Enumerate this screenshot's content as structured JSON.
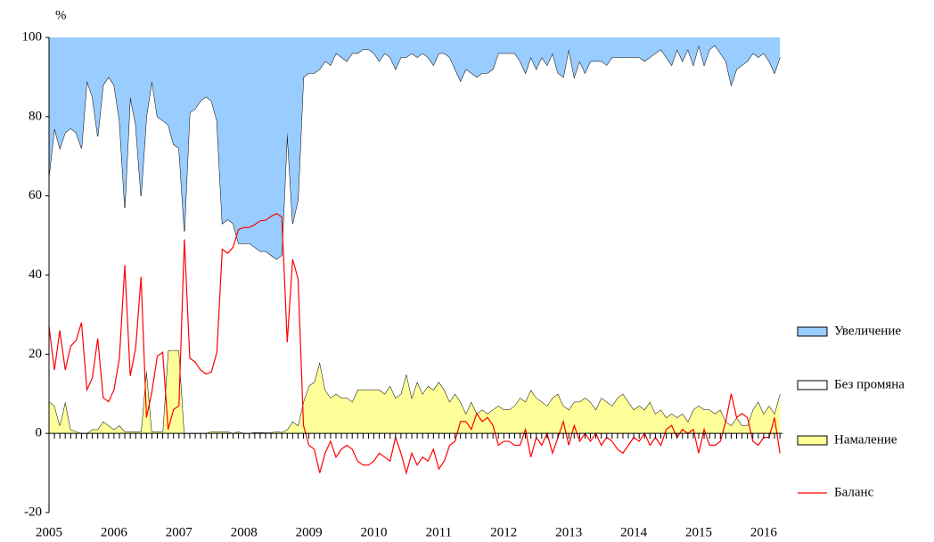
{
  "chart_data": {
    "type": "area",
    "y_label": "%",
    "categories": [
      "2005",
      null,
      null,
      null,
      null,
      null,
      null,
      null,
      null,
      null,
      null,
      null,
      "2006",
      null,
      null,
      null,
      null,
      null,
      null,
      null,
      null,
      null,
      null,
      null,
      "2007",
      null,
      null,
      null,
      null,
      null,
      null,
      null,
      null,
      null,
      null,
      null,
      "2008",
      null,
      null,
      null,
      null,
      null,
      null,
      null,
      null,
      null,
      null,
      null,
      "2009",
      null,
      null,
      null,
      null,
      null,
      null,
      null,
      null,
      null,
      null,
      null,
      "2010",
      null,
      null,
      null,
      null,
      null,
      null,
      null,
      null,
      null,
      null,
      null,
      "2011",
      null,
      null,
      null,
      null,
      null,
      null,
      null,
      null,
      null,
      null,
      null,
      "2012",
      null,
      null,
      null,
      null,
      null,
      null,
      null,
      null,
      null,
      null,
      null,
      "2013",
      null,
      null,
      null,
      null,
      null,
      null,
      null,
      null,
      null,
      null,
      null,
      "2014",
      null,
      null,
      null,
      null,
      null,
      null,
      null,
      null,
      null,
      null,
      null,
      "2015",
      null,
      null,
      null,
      null,
      null,
      null,
      null,
      null,
      null,
      null,
      null,
      "2016",
      null,
      null,
      null
    ],
    "series": [
      {
        "name": "Увеличение",
        "color": "#99ccff",
        "values": [
          35,
          23,
          28,
          24,
          23,
          24,
          28,
          11,
          15,
          25,
          12,
          10,
          12,
          21,
          43,
          15,
          22,
          40,
          20,
          11,
          20,
          21,
          22,
          27,
          28,
          49,
          19,
          18,
          16,
          15,
          16,
          21,
          47,
          46,
          47,
          52,
          52,
          52,
          53,
          54,
          54,
          55,
          56,
          55,
          24,
          47,
          41,
          10,
          9,
          9,
          8,
          6,
          7,
          4,
          5,
          6,
          4,
          4,
          3,
          3,
          4,
          6,
          4,
          5,
          8,
          5,
          5,
          4,
          5,
          4,
          5,
          7,
          4,
          4,
          5,
          8,
          11,
          8,
          9,
          10,
          9,
          9,
          8,
          4,
          4,
          4,
          4,
          6,
          9,
          5,
          8,
          5,
          7,
          4,
          9,
          10,
          3,
          10,
          6,
          9,
          6,
          6,
          6,
          7,
          5,
          5,
          5,
          5,
          5,
          5,
          6,
          5,
          4,
          3,
          5,
          7,
          3,
          6,
          3,
          7,
          2,
          7,
          3,
          2,
          4,
          6,
          12,
          8,
          7,
          6,
          4,
          5,
          4,
          6,
          9,
          5
        ]
      },
      {
        "name": "Без промяна",
        "color": "#ffffff",
        "values": [
          57,
          70,
          70,
          68,
          76,
          75.5,
          72,
          89,
          84,
          74,
          85,
          88,
          87,
          77,
          56.5,
          84.5,
          77.5,
          59.5,
          64,
          88.5,
          79.5,
          78.5,
          57,
          52,
          51,
          51,
          81,
          82,
          84,
          85,
          83.5,
          78.5,
          52.5,
          53.5,
          53,
          47.5,
          48,
          48,
          46.7,
          45.7,
          45.8,
          44.8,
          43.5,
          44.7,
          75,
          50,
          57,
          82,
          79,
          78,
          74,
          83,
          84,
          86,
          86,
          85,
          88,
          85,
          86,
          86,
          85,
          83,
          86,
          83,
          83,
          85,
          80,
          87,
          82,
          86,
          83,
          82,
          83,
          85,
          87,
          82,
          81,
          87,
          83,
          85,
          85,
          86,
          86,
          89,
          90,
          90,
          89,
          85,
          83,
          84,
          83,
          87,
          86,
          87,
          81,
          83,
          91,
          82,
          86,
          82,
          86,
          88,
          85,
          85,
          88,
          86,
          85,
          87,
          89,
          88,
          88,
          87,
          91,
          91,
          91,
          88,
          93,
          89,
          94,
          87,
          91,
          87,
          91,
          93,
          90,
          91,
          86,
          88,
          91,
          92,
          90,
          87,
          91,
          87,
          86,
          85
        ]
      },
      {
        "name": "Намаление",
        "color": "#ffff99",
        "values": [
          8,
          7,
          2,
          8,
          1,
          0.5,
          0,
          0,
          1,
          1,
          3,
          2,
          1,
          2,
          0.5,
          0.5,
          0.5,
          0.5,
          16,
          0.5,
          0.5,
          0.5,
          21,
          21,
          21,
          0,
          0,
          0,
          0,
          0,
          0.5,
          0.5,
          0.5,
          0.5,
          0,
          0.5,
          0,
          0,
          0.3,
          0.3,
          0.2,
          0.2,
          0.5,
          0.3,
          1,
          3,
          2,
          8,
          12,
          13,
          18,
          11,
          9,
          10,
          9,
          9,
          8,
          11,
          11,
          11,
          11,
          11,
          10,
          12,
          9,
          10,
          15,
          9,
          13,
          10,
          12,
          11,
          13,
          11,
          8,
          10,
          8,
          5,
          8,
          5,
          6,
          5,
          6,
          7,
          6,
          6,
          7,
          9,
          8,
          11,
          9,
          8,
          7,
          9,
          10,
          7,
          6,
          8,
          8,
          9,
          8,
          6,
          9,
          8,
          7,
          9,
          10,
          8,
          6,
          7,
          6,
          8,
          5,
          6,
          4,
          5,
          4,
          5,
          3,
          6,
          7,
          6,
          6,
          5,
          6,
          3,
          2,
          4,
          2,
          2,
          6,
          8,
          5,
          7,
          5,
          10
        ]
      },
      {
        "name": "Баланс",
        "type": "line",
        "color": "#ff0000",
        "values": [
          27,
          16,
          26,
          16,
          22,
          23.5,
          28,
          11,
          14,
          24,
          9,
          8,
          11,
          19,
          42.5,
          14.5,
          21.5,
          39.5,
          4,
          10.5,
          19.5,
          20.5,
          1,
          6,
          7,
          49,
          19,
          18,
          16,
          15,
          15.5,
          20.5,
          46.5,
          45.5,
          47,
          51.5,
          52,
          52,
          52.7,
          53.7,
          53.8,
          54.8,
          55.5,
          54.7,
          23,
          44,
          39,
          2,
          -3,
          -4,
          -10,
          -5,
          -2,
          -6,
          -4,
          -3,
          -4,
          -7,
          -8,
          -8,
          -7,
          -5,
          -6,
          -7,
          -1,
          -5,
          -10,
          -5,
          -8,
          -6,
          -7,
          -4,
          -9,
          -7,
          -3,
          -2,
          3,
          3,
          1,
          5,
          3,
          4,
          2,
          -3,
          -2,
          -2,
          -3,
          -3,
          1,
          -6,
          -1,
          -3,
          0,
          -5,
          -1,
          3,
          -3,
          2,
          -2,
          0,
          -2,
          0,
          -3,
          -1,
          -2,
          -4,
          -5,
          -3,
          -1,
          -2,
          0,
          -3,
          -1,
          -3,
          1,
          2,
          -1,
          1,
          0,
          1,
          -5,
          1,
          -3,
          -3,
          -2,
          3,
          10,
          4,
          5,
          4,
          -2,
          -3,
          -1,
          -1,
          4,
          -5
        ]
      }
    ],
    "ylim": [
      -20,
      100
    ],
    "yticks": [
      -20,
      0,
      20,
      40,
      60,
      80,
      100
    ],
    "grid": false,
    "legend": "right"
  }
}
